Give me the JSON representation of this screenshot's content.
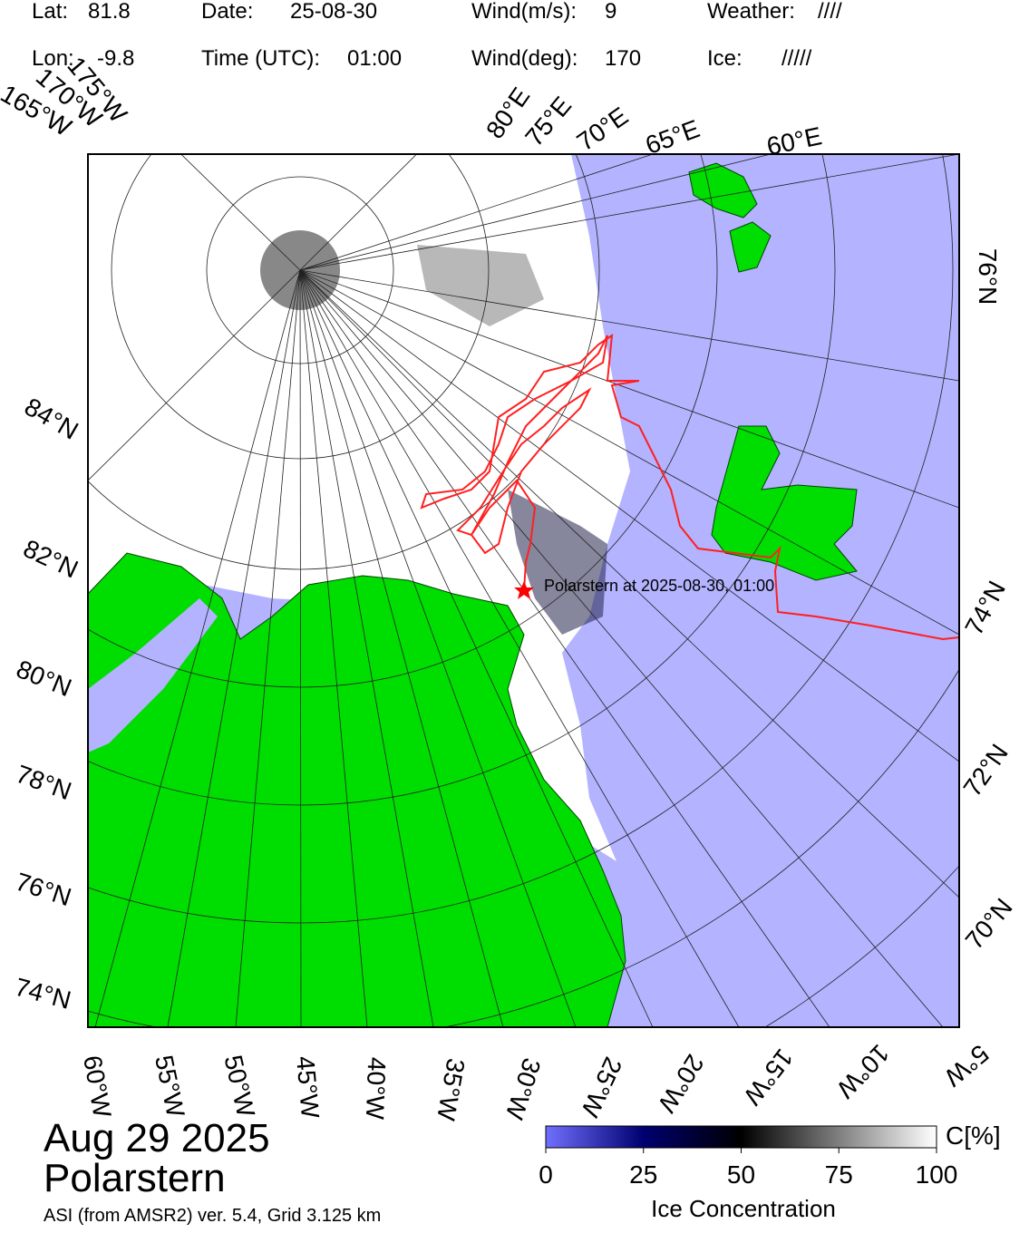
{
  "header": {
    "lat_label": "Lat:",
    "lat": "81.8",
    "date_label": "Date:",
    "date": "25-08-30",
    "wind_speed_label": "Wind(m/s):",
    "wind_speed": "9",
    "weather_label": "Weather:",
    "weather": "////",
    "lon_label": "Lon:",
    "lon": "-9.8",
    "time_label": "Time (UTC):",
    "time": "01:00",
    "wind_dir_label": "Wind(deg):",
    "wind_dir": "170",
    "ice_label": "Ice:",
    "ice": "/////"
  },
  "map": {
    "lat_labels_left": [
      "84°N",
      "82°N",
      "80°N",
      "78°N",
      "76°N",
      "74°N"
    ],
    "lat_labels_right": [
      "76°N",
      "74°N",
      "72°N",
      "70°N"
    ],
    "lon_labels_bottom": [
      "60°W",
      "55°W",
      "50°W",
      "45°W",
      "40°W",
      "35°W",
      "30°W",
      "25°W",
      "20°W",
      "15°W",
      "10°W",
      "5°W"
    ],
    "lon_labels_top": [
      "165°W",
      "170°W",
      "175°W",
      "80°E",
      "75°E",
      "70°E",
      "65°E",
      "60°E"
    ],
    "annotation": "Polarstern at 2025-08-30, 01:00"
  },
  "colorbar": {
    "lim": [
      0,
      100
    ],
    "ticks": [
      0,
      25,
      50,
      75,
      100
    ],
    "unit": "C[%]",
    "label": "Ice Concentration"
  },
  "footer": {
    "date": "Aug 29 2025",
    "ship": "Polarstern",
    "source": "ASI (from AMSR2) ver. 5.4,  Grid 3.125 km"
  }
}
